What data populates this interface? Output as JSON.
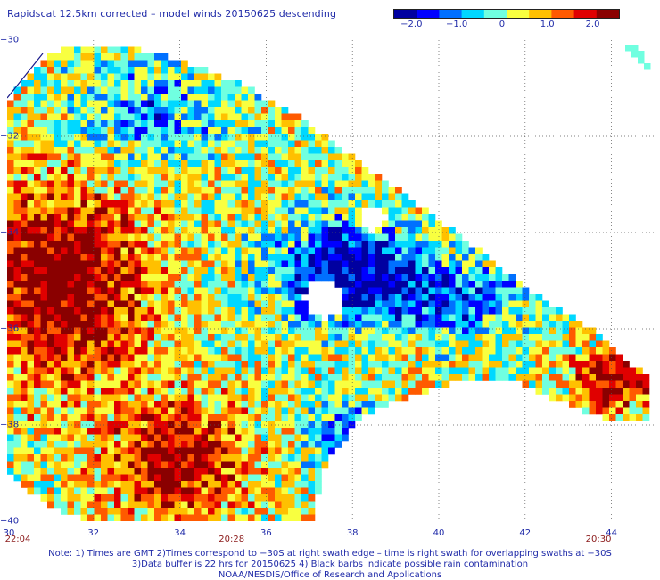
{
  "title": "Rapidscat 12.5km corrected – model winds 20150625 descending",
  "colorbar": {
    "colors": [
      "#0000a0",
      "#0000ff",
      "#0070ff",
      "#00d8ff",
      "#70ffe0",
      "#f8ff40",
      "#ffc000",
      "#ff5a00",
      "#e00000",
      "#8a0000"
    ],
    "labels": [
      {
        "text": "−2.0",
        "value": -2.0
      },
      {
        "text": "−1.0",
        "value": -1.0
      },
      {
        "text": "0",
        "value": 0
      },
      {
        "text": "1.0",
        "value": 1.0
      },
      {
        "text": "2.0",
        "value": 2.0
      }
    ],
    "range": [
      -2.4,
      2.6
    ]
  },
  "axes": {
    "lon_range": [
      30,
      45
    ],
    "lat_range": [
      -30,
      -40
    ],
    "lat_labels": [
      "−30",
      "−32",
      "−34",
      "−36",
      "−38",
      "−40"
    ],
    "lat_values": [
      -30,
      -32,
      -34,
      -36,
      -38,
      -40
    ],
    "lon_labels": [
      "30",
      "32",
      "34",
      "36",
      "38",
      "40",
      "42",
      "44"
    ],
    "lon_values": [
      30,
      32,
      34,
      36,
      38,
      40,
      42,
      44
    ]
  },
  "time_labels": [
    {
      "text": "22:04",
      "lon": 30
    },
    {
      "text": "20:28",
      "lon": 35.2
    },
    {
      "text": "20:30",
      "lon": 43.7
    }
  ],
  "notes": [
    "Note: 1) Times are GMT 2)Times correspond to −30S at right swath edge – time is right swath for overlapping swaths at −30S",
    "3)Data buffer is 22 hrs for 20150625 4) Black barbs indicate possible rain contamination",
    "NOAA/NESDIS/Office of Research and Applications"
  ]
}
